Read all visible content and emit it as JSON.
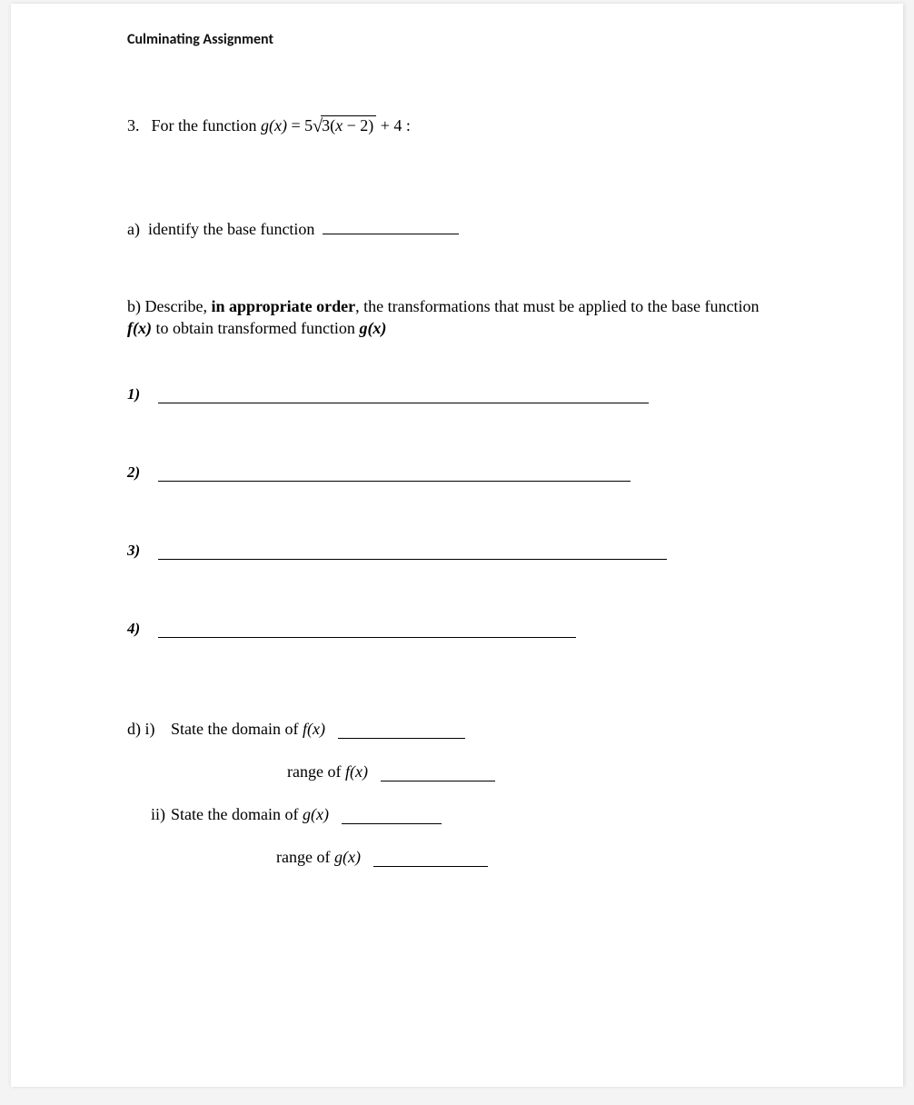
{
  "header": "Culminating Assignment",
  "q3": {
    "number": "3.",
    "lead": "For the function",
    "fn_lhs_g": "g",
    "fn_lhs_x": "(x)",
    "eq": "=",
    "coef": "5",
    "sqrt_arg_a": "3(",
    "sqrt_arg_x": "x",
    "sqrt_arg_b": " − 2)",
    "tail": " + 4 :"
  },
  "part_a": {
    "label": "a)",
    "text": "identify the base function"
  },
  "part_b": {
    "label": "b)",
    "pre": "Describe, ",
    "bold": "in appropriate order",
    "mid1": ", the transformations that must be applied to the base function ",
    "fx": "f(x)",
    "mid2": " to obtain transformed function ",
    "gx": "g(x)"
  },
  "lines": {
    "l1": "1)",
    "l2": "2)",
    "l3": "3)",
    "l4": "4)"
  },
  "part_d": {
    "d_i": "d) i)",
    "state_domain_f_pre": "State the domain of ",
    "fx": "f(x)",
    "range_of": "range of  ",
    "ii": "ii)",
    "state_domain_g_pre": "State the domain of ",
    "gx": "g(x)"
  }
}
